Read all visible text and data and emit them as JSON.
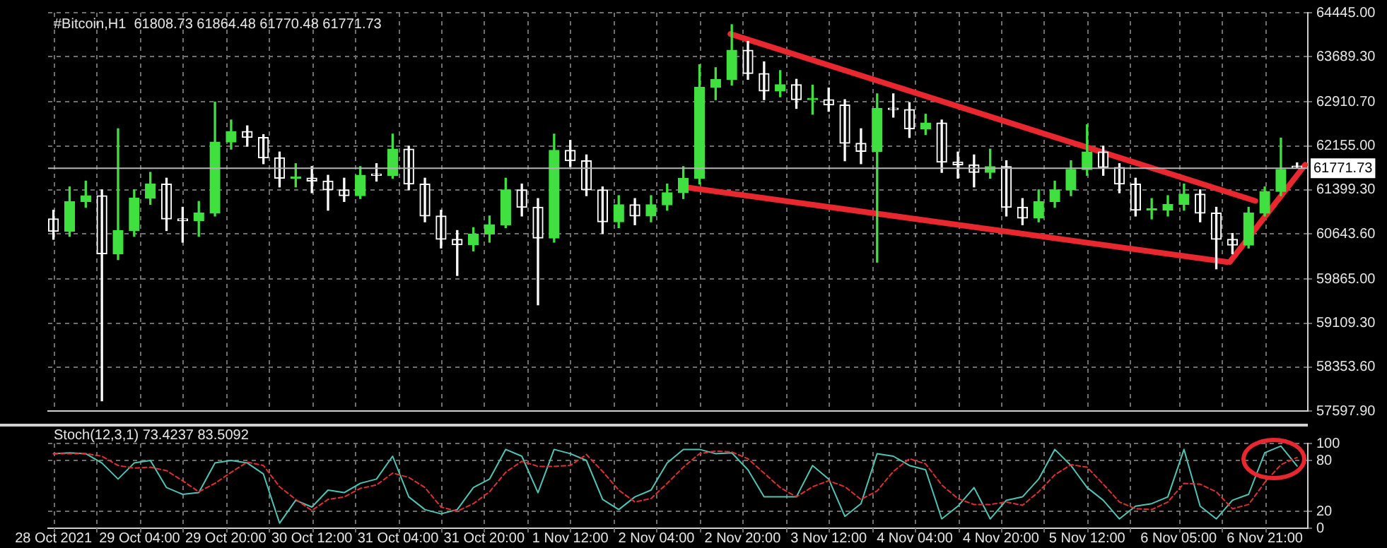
{
  "chart_data": [
    {
      "type": "candlestick",
      "title": "#Bitcoin,H1  61808.73 61864.48 61770.48 61771.73",
      "grid": true,
      "tick_labels": "y",
      "x": [
        "2021-10-28T12:00",
        "2021-10-28T15:00",
        "2021-10-28T18:00",
        "2021-10-28T21:00",
        "2021-10-29T00:00",
        "2021-10-29T03:00",
        "2021-10-29T06:00",
        "2021-10-29T09:00",
        "2021-10-29T12:00",
        "2021-10-29T15:00",
        "2021-10-29T18:00",
        "2021-10-29T21:00",
        "2021-10-30T00:00",
        "2021-10-30T03:00",
        "2021-10-30T06:00",
        "2021-10-30T09:00",
        "2021-10-30T12:00",
        "2021-10-30T15:00",
        "2021-10-30T18:00",
        "2021-10-30T21:00",
        "2021-10-31T00:00",
        "2021-10-31T03:00",
        "2021-10-31T06:00",
        "2021-10-31T09:00",
        "2021-10-31T12:00",
        "2021-10-31T15:00",
        "2021-10-31T18:00",
        "2021-10-31T21:00",
        "2021-11-01T00:00",
        "2021-11-01T03:00",
        "2021-11-01T06:00",
        "2021-11-01T09:00",
        "2021-11-01T12:00",
        "2021-11-01T15:00",
        "2021-11-01T18:00",
        "2021-11-01T21:00",
        "2021-11-02T00:00",
        "2021-11-02T03:00",
        "2021-11-02T06:00",
        "2021-11-02T09:00",
        "2021-11-02T12:00",
        "2021-11-02T15:00",
        "2021-11-02T18:00",
        "2021-11-02T21:00",
        "2021-11-03T00:00",
        "2021-11-03T03:00",
        "2021-11-03T06:00",
        "2021-11-03T09:00",
        "2021-11-03T12:00",
        "2021-11-03T15:00",
        "2021-11-03T18:00",
        "2021-11-03T21:00",
        "2021-11-04T00:00",
        "2021-11-04T03:00",
        "2021-11-04T06:00",
        "2021-11-04T09:00",
        "2021-11-04T12:00",
        "2021-11-04T15:00",
        "2021-11-04T18:00",
        "2021-11-04T21:00",
        "2021-11-05T00:00",
        "2021-11-05T03:00",
        "2021-11-05T06:00",
        "2021-11-05T09:00",
        "2021-11-05T12:00",
        "2021-11-05T15:00",
        "2021-11-05T18:00",
        "2021-11-05T21:00",
        "2021-11-06T00:00",
        "2021-11-06T03:00",
        "2021-11-06T06:00",
        "2021-11-06T09:00",
        "2021-11-06T12:00",
        "2021-11-06T15:00",
        "2021-11-06T18:00",
        "2021-11-06T21:00",
        "2021-11-07T00:00",
        "2021-11-07T03:00"
      ],
      "xlim": [
        "2021-10-28T11:00",
        "2021-11-07T05:00"
      ],
      "xticks": [
        {
          "value": "2021-10-28T12:00",
          "label": null
        },
        {
          "value": "2021-10-28T20:00",
          "label": null
        },
        {
          "value": "2021-10-29T04:00",
          "label": null
        },
        {
          "value": "2021-10-29T12:00",
          "label": null
        },
        {
          "value": "2021-10-29T20:00",
          "label": null
        },
        {
          "value": "2021-10-30T04:00",
          "label": null
        },
        {
          "value": "2021-10-30T12:00",
          "label": null
        },
        {
          "value": "2021-10-30T20:00",
          "label": null
        },
        {
          "value": "2021-10-31T04:00",
          "label": null
        },
        {
          "value": "2021-10-31T12:00",
          "label": null
        },
        {
          "value": "2021-10-31T20:00",
          "label": null
        },
        {
          "value": "2021-11-01T04:00",
          "label": null
        },
        {
          "value": "2021-11-01T12:00",
          "label": null
        },
        {
          "value": "2021-11-01T20:00",
          "label": null
        },
        {
          "value": "2021-11-02T04:00",
          "label": null
        },
        {
          "value": "2021-11-02T12:00",
          "label": null
        },
        {
          "value": "2021-11-02T20:00",
          "label": null
        },
        {
          "value": "2021-11-03T04:00",
          "label": null
        },
        {
          "value": "2021-11-03T12:00",
          "label": null
        },
        {
          "value": "2021-11-03T20:00",
          "label": null
        },
        {
          "value": "2021-11-04T04:00",
          "label": null
        },
        {
          "value": "2021-11-04T12:00",
          "label": null
        },
        {
          "value": "2021-11-04T20:00",
          "label": null
        },
        {
          "value": "2021-11-05T04:00",
          "label": null
        },
        {
          "value": "2021-11-05T12:00",
          "label": null
        },
        {
          "value": "2021-11-05T20:00",
          "label": null
        },
        {
          "value": "2021-11-06T05:00",
          "label": null
        },
        {
          "value": "2021-11-06T13:00",
          "label": null
        },
        {
          "value": "2021-11-06T21:00",
          "label": null
        }
      ],
      "ylim": [
        57597.9,
        64445
      ],
      "yticks": [
        {
          "value": 57597.9,
          "label": "57597.90"
        },
        {
          "value": 58353.6,
          "label": "58353.60"
        },
        {
          "value": 59109.3,
          "label": "59109.30"
        },
        {
          "value": 59865,
          "label": "59865.00"
        },
        {
          "value": 60643.6,
          "label": "60643.60"
        },
        {
          "value": 61399.3,
          "label": "61399.30"
        },
        {
          "value": 62155,
          "label": "62155.00"
        },
        {
          "value": 62910.7,
          "label": "62910.70"
        },
        {
          "value": 63689.3,
          "label": "63689.30"
        },
        {
          "value": 64445,
          "label": "64445.00"
        }
      ],
      "ref_lines": [
        {
          "axis": "y",
          "value": 61771.73,
          "label": "61771.73",
          "color": "#b4b4b4"
        }
      ],
      "series": [
        {
          "type": "candlestick",
          "colors": [
            "#ffffff",
            "#3fe03f",
            "#3fe03f",
            "#ffffff",
            "#3fe03f",
            "#3fe03f",
            "#3fe03f",
            "#ffffff",
            "#ffffff",
            "#3fe03f",
            "#3fe03f",
            "#3fe03f",
            "#ffffff",
            "#ffffff",
            "#ffffff",
            "#3fe03f",
            "#ffffff",
            "#ffffff",
            "#ffffff",
            "#3fe03f",
            "#ffffff",
            "#3fe03f",
            "#ffffff",
            "#ffffff",
            "#ffffff",
            "#ffffff",
            "#3fe03f",
            "#3fe03f",
            "#3fe03f",
            "#ffffff",
            "#ffffff",
            "#3fe03f",
            "#ffffff",
            "#ffffff",
            "#ffffff",
            "#3fe03f",
            "#ffffff",
            "#3fe03f",
            "#3fe03f",
            "#3fe03f",
            "#3fe03f",
            "#3fe03f",
            "#3fe03f",
            "#ffffff",
            "#ffffff",
            "#3fe03f",
            "#ffffff",
            "#3fe03f",
            "#ffffff",
            "#ffffff",
            "#ffffff",
            "#3fe03f",
            "#ffffff",
            "#ffffff",
            "#3fe03f",
            "#ffffff",
            "#ffffff",
            "#ffffff",
            "#3fe03f",
            "#ffffff",
            "#ffffff",
            "#3fe03f",
            "#3fe03f",
            "#3fe03f",
            "#3fe03f",
            "#ffffff",
            "#ffffff",
            "#ffffff",
            "#3fe03f",
            "#3fe03f",
            "#3fe03f",
            "#ffffff",
            "#ffffff",
            "#ffffff",
            "#3fe03f",
            "#3fe03f",
            "#3fe03f",
            "#ffffff"
          ],
          "ohlc": [
            [
              60900,
              61050,
              60550,
              60685
            ],
            [
              60685,
              61450,
              60600,
              61200
            ],
            [
              61200,
              61550,
              61100,
              61300
            ],
            [
              61300,
              61400,
              57772,
              60300
            ],
            [
              60300,
              62450,
              60200,
              60700
            ],
            [
              60700,
              61400,
              60600,
              61258
            ],
            [
              61258,
              61700,
              61150,
              61500
            ],
            [
              61500,
              61600,
              60700,
              60900
            ],
            [
              60900,
              61100,
              60500,
              60870
            ],
            [
              60870,
              61200,
              60600,
              61000
            ],
            [
              61000,
              62909,
              60950,
              62221
            ],
            [
              62221,
              62600,
              62100,
              62404
            ],
            [
              62404,
              62500,
              62150,
              62300
            ],
            [
              62300,
              62350,
              61850,
              61950
            ],
            [
              61950,
              62050,
              61450,
              61600
            ],
            [
              61600,
              61850,
              61450,
              61602
            ],
            [
              61602,
              61800,
              61350,
              61550
            ],
            [
              61550,
              61650,
              61050,
              61400
            ],
            [
              61400,
              61600,
              61200,
              61300
            ],
            [
              61300,
              61800,
              61250,
              61650
            ],
            [
              61650,
              61850,
              61550,
              61648
            ],
            [
              61648,
              62358,
              61600,
              62100
            ],
            [
              62100,
              62150,
              61400,
              61500
            ],
            [
              61500,
              61600,
              60850,
              60950
            ],
            [
              60950,
              61050,
              60400,
              60550
            ],
            [
              60550,
              60700,
              59928,
              60455
            ],
            [
              60455,
              60750,
              60350,
              60639
            ],
            [
              60639,
              60950,
              60500,
              60800
            ],
            [
              60800,
              61600,
              60750,
              61400
            ],
            [
              61400,
              61500,
              60950,
              61100
            ],
            [
              61100,
              61250,
              59423,
              60570
            ],
            [
              60570,
              62358,
              60500,
              62080
            ],
            [
              62080,
              62250,
              61800,
              61900
            ],
            [
              61900,
              62000,
              61300,
              61400
            ],
            [
              61400,
              61450,
              60650,
              60850
            ],
            [
              60850,
              61300,
              60750,
              61143
            ],
            [
              61143,
              61250,
              60800,
              60950
            ],
            [
              60950,
              61300,
              60850,
              61143
            ],
            [
              61143,
              61500,
              61050,
              61350
            ],
            [
              61350,
              61800,
              61250,
              61600
            ],
            [
              61600,
              63550,
              61500,
              63161
            ],
            [
              63161,
              63500,
              62950,
              63300
            ],
            [
              63300,
              64239,
              63200,
              63800
            ],
            [
              63800,
              63950,
              63300,
              63400
            ],
            [
              63400,
              63600,
              62950,
              63100
            ],
            [
              63100,
              63450,
              63000,
              63207
            ],
            [
              63207,
              63300,
              62800,
              62950
            ],
            [
              62950,
              63200,
              62700,
              62950
            ],
            [
              62950,
              63150,
              62750,
              62860
            ],
            [
              62860,
              62950,
              61900,
              62200
            ],
            [
              62200,
              62450,
              61850,
              62060
            ],
            [
              62060,
              63050,
              60157,
              62800
            ],
            [
              62800,
              63050,
              62650,
              62780
            ],
            [
              62780,
              62900,
              62300,
              62450
            ],
            [
              62450,
              62700,
              62350,
              62550
            ],
            [
              62550,
              62600,
              61700,
              61877
            ],
            [
              61877,
              62050,
              61600,
              61830
            ],
            [
              61830,
              62000,
              61450,
              61700
            ],
            [
              61700,
              62100,
              61600,
              61800
            ],
            [
              61800,
              61900,
              60950,
              61100
            ],
            [
              61100,
              61250,
              60800,
              60914
            ],
            [
              60914,
              61400,
              60850,
              61200
            ],
            [
              61200,
              61550,
              61100,
              61400
            ],
            [
              61400,
              61900,
              61300,
              61750
            ],
            [
              61750,
              62519,
              61650,
              62050
            ],
            [
              62050,
              62150,
              61650,
              61785
            ],
            [
              61785,
              61850,
              61350,
              61500
            ],
            [
              61500,
              61600,
              60950,
              61050
            ],
            [
              61050,
              61250,
              60900,
              61050
            ],
            [
              61050,
              61300,
              60950,
              61150
            ],
            [
              61150,
              61500,
              61050,
              61327
            ],
            [
              61327,
              61400,
              60850,
              61000
            ],
            [
              61000,
              61100,
              60042,
              60550
            ],
            [
              60550,
              60650,
              60300,
              60450
            ],
            [
              60450,
              61100,
              60400,
              61000
            ],
            [
              61000,
              61450,
              60950,
              61372
            ],
            [
              61372,
              62290,
              61300,
              61750
            ],
            [
              61808.73,
              61864.48,
              61770.48,
              61771.73
            ]
          ]
        },
        {
          "type": "line",
          "color": "#e8282e",
          "x": [
            "2021-11-02T17:45",
            "2021-11-06T19:15"
          ],
          "values": [
            64080,
            61210
          ]
        },
        {
          "type": "line",
          "color": "#e8282e",
          "x": [
            "2021-11-02T09:45",
            "2021-11-06T14:00"
          ],
          "values": [
            61440,
            60160
          ]
        },
        {
          "type": "line",
          "color": "#e8282e",
          "x": [
            "2021-11-06T14:30",
            "2021-11-07T04:30"
          ],
          "values": [
            60160,
            61830
          ]
        }
      ]
    },
    {
      "type": "line",
      "title": "Stoch(12,3,1) 73.4237 83.5092",
      "grid": true,
      "marker": "none",
      "x": [
        "2021-10-28T12:00",
        "2021-10-28T15:00",
        "2021-10-28T18:00",
        "2021-10-28T21:00",
        "2021-10-29T00:00",
        "2021-10-29T03:00",
        "2021-10-29T06:00",
        "2021-10-29T09:00",
        "2021-10-29T12:00",
        "2021-10-29T15:00",
        "2021-10-29T18:00",
        "2021-10-29T21:00",
        "2021-10-30T00:00",
        "2021-10-30T03:00",
        "2021-10-30T06:00",
        "2021-10-30T09:00",
        "2021-10-30T12:00",
        "2021-10-30T15:00",
        "2021-10-30T18:00",
        "2021-10-30T21:00",
        "2021-10-31T00:00",
        "2021-10-31T03:00",
        "2021-10-31T06:00",
        "2021-10-31T09:00",
        "2021-10-31T12:00",
        "2021-10-31T15:00",
        "2021-10-31T18:00",
        "2021-10-31T21:00",
        "2021-11-01T00:00",
        "2021-11-01T03:00",
        "2021-11-01T06:00",
        "2021-11-01T09:00",
        "2021-11-01T12:00",
        "2021-11-01T15:00",
        "2021-11-01T18:00",
        "2021-11-01T21:00",
        "2021-11-02T00:00",
        "2021-11-02T03:00",
        "2021-11-02T06:00",
        "2021-11-02T09:00",
        "2021-11-02T12:00",
        "2021-11-02T15:00",
        "2021-11-02T18:00",
        "2021-11-02T21:00",
        "2021-11-03T00:00",
        "2021-11-03T03:00",
        "2021-11-03T06:00",
        "2021-11-03T09:00",
        "2021-11-03T12:00",
        "2021-11-03T15:00",
        "2021-11-03T18:00",
        "2021-11-03T21:00",
        "2021-11-04T00:00",
        "2021-11-04T03:00",
        "2021-11-04T06:00",
        "2021-11-04T09:00",
        "2021-11-04T12:00",
        "2021-11-04T15:00",
        "2021-11-04T18:00",
        "2021-11-04T21:00",
        "2021-11-05T00:00",
        "2021-11-05T03:00",
        "2021-11-05T06:00",
        "2021-11-05T09:00",
        "2021-11-05T12:00",
        "2021-11-05T15:00",
        "2021-11-05T18:00",
        "2021-11-05T21:00",
        "2021-11-06T00:00",
        "2021-11-06T03:00",
        "2021-11-06T06:00",
        "2021-11-06T09:00",
        "2021-11-06T12:00",
        "2021-11-06T15:00",
        "2021-11-06T18:00",
        "2021-11-06T21:00",
        "2021-11-07T00:00",
        "2021-11-07T03:00"
      ],
      "xlim": [
        "2021-10-28T11:00",
        "2021-11-07T05:00"
      ],
      "xticks": [
        {
          "value": "2021-10-28T12:00",
          "label": "28 Oct 2021"
        },
        {
          "value": "2021-10-28T20:00",
          "label": null
        },
        {
          "value": "2021-10-29T04:00",
          "label": "29 Oct 04:00"
        },
        {
          "value": "2021-10-29T12:00",
          "label": null
        },
        {
          "value": "2021-10-29T20:00",
          "label": "29 Oct 20:00"
        },
        {
          "value": "2021-10-30T04:00",
          "label": null
        },
        {
          "value": "2021-10-30T12:00",
          "label": "30 Oct 12:00"
        },
        {
          "value": "2021-10-30T20:00",
          "label": null
        },
        {
          "value": "2021-10-31T04:00",
          "label": "31 Oct 04:00"
        },
        {
          "value": "2021-10-31T12:00",
          "label": null
        },
        {
          "value": "2021-10-31T20:00",
          "label": "31 Oct 20:00"
        },
        {
          "value": "2021-11-01T04:00",
          "label": null
        },
        {
          "value": "2021-11-01T12:00",
          "label": "1 Nov 12:00"
        },
        {
          "value": "2021-11-01T20:00",
          "label": null
        },
        {
          "value": "2021-11-02T04:00",
          "label": "2 Nov 04:00"
        },
        {
          "value": "2021-11-02T12:00",
          "label": null
        },
        {
          "value": "2021-11-02T20:00",
          "label": "2 Nov 20:00"
        },
        {
          "value": "2021-11-03T04:00",
          "label": null
        },
        {
          "value": "2021-11-03T12:00",
          "label": "3 Nov 12:00"
        },
        {
          "value": "2021-11-03T20:00",
          "label": null
        },
        {
          "value": "2021-11-04T04:00",
          "label": "4 Nov 04:00"
        },
        {
          "value": "2021-11-04T12:00",
          "label": null
        },
        {
          "value": "2021-11-04T20:00",
          "label": "4 Nov 20:00"
        },
        {
          "value": "2021-11-05T04:00",
          "label": null
        },
        {
          "value": "2021-11-05T12:00",
          "label": "5 Nov 12:00"
        },
        {
          "value": "2021-11-05T20:00",
          "label": null
        },
        {
          "value": "2021-11-06T05:00",
          "label": "6 Nov 05:00"
        },
        {
          "value": "2021-11-06T13:00",
          "label": null
        },
        {
          "value": "2021-11-06T21:00",
          "label": "6 Nov 21:00"
        }
      ],
      "ylim": [
        0,
        100
      ],
      "yticks": [
        0,
        20,
        80,
        100
      ],
      "series": [
        {
          "color": "#4fc4b4",
          "values": [
            88,
            89,
            88,
            77,
            58,
            77,
            80,
            48,
            40,
            42,
            77,
            80,
            77,
            64,
            6,
            33,
            25,
            45,
            42,
            53,
            58,
            85,
            37,
            22,
            17,
            22,
            48,
            58,
            93,
            85,
            42,
            93,
            88,
            80,
            34,
            22,
            37,
            45,
            77,
            93,
            93,
            88,
            89,
            69,
            37,
            37,
            37,
            74,
            58,
            14,
            29,
            88,
            85,
            74,
            69,
            11,
            26,
            48,
            11,
            33,
            37,
            58,
            93,
            74,
            48,
            33,
            11,
            26,
            29,
            37,
            93,
            26,
            11,
            33,
            40,
            89,
            97,
            73.4237
          ]
        },
        {
          "color": "#e03030",
          "line_style": "dashed",
          "values": [
            88,
            88,
            88,
            85,
            74,
            71,
            72,
            68,
            56,
            43,
            53,
            66,
            78,
            74,
            49,
            34,
            21,
            34,
            37,
            47,
            51,
            65,
            60,
            48,
            25,
            20,
            29,
            43,
            66,
            79,
            73,
            73,
            74,
            87,
            67,
            45,
            31,
            35,
            53,
            72,
            88,
            91,
            90,
            82,
            65,
            48,
            37,
            49,
            56,
            49,
            34,
            44,
            67,
            82,
            76,
            51,
            35,
            28,
            28,
            31,
            27,
            43,
            63,
            75,
            72,
            52,
            31,
            23,
            22,
            31,
            53,
            52,
            43,
            23,
            28,
            54,
            75,
            83.5092
          ]
        }
      ]
    }
  ]
}
